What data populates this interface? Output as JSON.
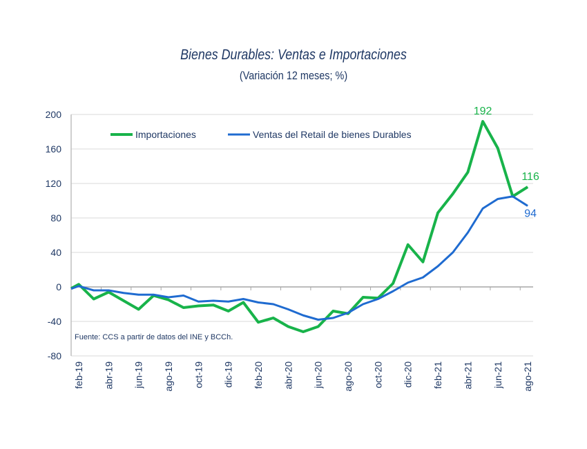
{
  "chart_data": {
    "type": "line",
    "title": "Bienes Durables: Ventas e Importaciones",
    "subtitle": "(Variación 12 meses; %)",
    "source": "Fuente: CCS a partir de datos del INE y BCCh.",
    "x": [
      "feb-19",
      "mar-19",
      "abr-19",
      "may-19",
      "jun-19",
      "jul-19",
      "ago-19",
      "sep-19",
      "oct-19",
      "nov-19",
      "dic-19",
      "ene-20",
      "feb-20",
      "mar-20",
      "abr-20",
      "may-20",
      "jun-20",
      "jul-20",
      "ago-20",
      "sep-20",
      "oct-20",
      "nov-20",
      "dic-20",
      "ene-21",
      "feb-21",
      "mar-21",
      "abr-21",
      "may-21",
      "jun-21",
      "jul-21",
      "ago-21"
    ],
    "xtick_labels": [
      "feb-19",
      "abr-19",
      "jun-19",
      "ago-19",
      "oct-19",
      "dic-19",
      "feb-20",
      "abr-20",
      "jun-20",
      "ago-20",
      "oct-20",
      "dic-20",
      "feb-21",
      "abr-21",
      "jun-21",
      "ago-21"
    ],
    "ylim": [
      -80,
      200
    ],
    "yticks": [
      -80,
      -40,
      0,
      40,
      80,
      120,
      160,
      200
    ],
    "grid": "horizontal",
    "legend": "top-left",
    "series": [
      {
        "name": "Importaciones",
        "color": "#18b34a",
        "values": [
          3,
          -14,
          -6,
          -16,
          -26,
          -10,
          -15,
          -24,
          -22,
          -21,
          -28,
          -18,
          -41,
          -36,
          -46,
          -52,
          -46,
          -28,
          -31,
          -12,
          -13,
          4,
          49,
          29,
          86,
          108,
          133,
          192,
          161,
          105,
          116
        ],
        "annotations": [
          {
            "x": "may-21",
            "label": "192"
          },
          {
            "x": "ago-21",
            "label": "116"
          }
        ]
      },
      {
        "name": "Ventas del Retail de bienes Durables",
        "color": "#1f6bd0",
        "values": [
          1,
          -4,
          -4,
          -7,
          -9,
          -9,
          -12,
          -10,
          -17,
          -16,
          -17,
          -14,
          -18,
          -20,
          -26,
          -33,
          -38,
          -36,
          -30,
          -20,
          -14,
          -5,
          5,
          11,
          24,
          40,
          63,
          91,
          102,
          105,
          94
        ],
        "annotations": [
          {
            "x": "ago-21",
            "label": "94"
          }
        ]
      }
    ]
  }
}
